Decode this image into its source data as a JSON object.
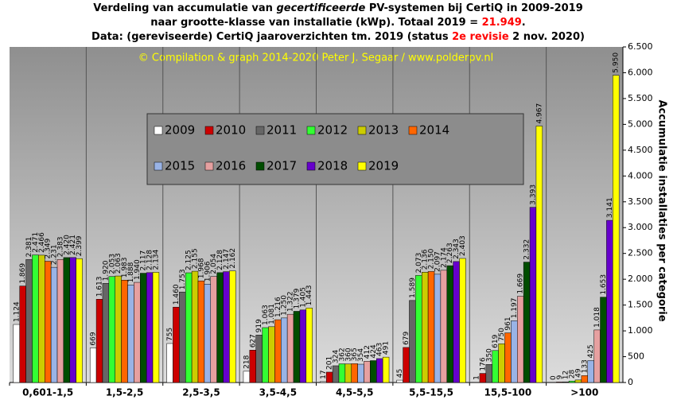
{
  "chart_data": {
    "type": "bar",
    "title_lines": [
      [
        {
          "text": "Verdeling van accumulatie van "
        },
        {
          "text": "gecertificeerde",
          "italic": true
        },
        {
          "text": " PV-systemen bij CertiQ in 2009-2019"
        }
      ],
      [
        {
          "text": "naar grootte-klasse van installatie (kWp). Totaal 2019 = "
        },
        {
          "text": "21.949",
          "color": "#ff0000"
        },
        {
          "text": "."
        }
      ],
      [
        {
          "text": "Data: (gereviseerde) CertiQ jaaroverzichten tm. 2019 (status "
        },
        {
          "text": "2e revisie",
          "color": "#ff0000"
        },
        {
          "text": " 2 nov. 2020)"
        }
      ]
    ],
    "annotation": "© Compilation  & graph 2014-2020 Peter J. Segaar / www.polderpv.nl",
    "y_label": "Accumulatie installaties per categorie",
    "categories": [
      "0,601-1,5",
      "1,5-2,5",
      "2,5-3,5",
      "3,5-4,5",
      "4,5-5,5",
      "5,5-15,5",
      "15,5-100",
      ">100"
    ],
    "ylim": [
      0,
      6500
    ],
    "yticks": [
      0,
      500,
      {
        "value": 1000,
        "label": "1.000"
      },
      {
        "value": 1500,
        "label": "1.500"
      },
      {
        "value": 2000,
        "label": "2.000"
      },
      {
        "value": 2500,
        "label": "2.500"
      },
      {
        "value": 3000,
        "label": "3.000"
      },
      {
        "value": 3500,
        "label": "3.500"
      },
      {
        "value": 4000,
        "label": "4.000"
      },
      {
        "value": 4500,
        "label": "4.500"
      },
      {
        "value": 5000,
        "label": "5.000"
      },
      {
        "value": 5500,
        "label": "5.500"
      },
      {
        "value": 6000,
        "label": "6.000"
      },
      {
        "value": 6500,
        "label": "6.500"
      }
    ],
    "series": [
      {
        "name": "2009",
        "color": "#ffffff",
        "values": [
          1124,
          669,
          755,
          218,
          17,
          45,
          1,
          0
        ],
        "value_labels": [
          "1.124",
          "669",
          "755",
          "218",
          "17",
          "45",
          "1",
          "0"
        ]
      },
      {
        "name": "2010",
        "color": "#cc0000",
        "values": [
          1869,
          1613,
          1460,
          627,
          201,
          679,
          176,
          9
        ],
        "value_labels": [
          "1.869",
          "1.613",
          "1.460",
          "627",
          "201",
          "679",
          "176",
          "9"
        ]
      },
      {
        "name": "2011",
        "color": "#666666",
        "values": [
          2381,
          1920,
          1753,
          919,
          324,
          1589,
          350,
          12
        ],
        "value_labels": [
          "2.381",
          "1.920",
          "1.753",
          "919",
          "324",
          "1.589",
          "350",
          "12"
        ]
      },
      {
        "name": "2012",
        "color": "#33ff33",
        "values": [
          2471,
          2053,
          2125,
          1063,
          362,
          2073,
          619,
          28
        ],
        "value_labels": [
          "2.471",
          "2.053",
          "2.125",
          "1.063",
          "362",
          "2.073",
          "619",
          "28"
        ]
      },
      {
        "name": "2013",
        "color": "#cccc00",
        "values": [
          2466,
          2063,
          2155,
          1081,
          360,
          2136,
          750,
          49
        ],
        "value_labels": [
          "2.466",
          "2.063",
          "2.155",
          "1.081",
          "360",
          "2.136",
          "750",
          "49"
        ]
      },
      {
        "name": "2014",
        "color": "#ff6600",
        "values": [
          2349,
          1983,
          1968,
          1216,
          365,
          2150,
          961,
          133
        ],
        "value_labels": [
          "2.349",
          "1.983",
          "1.968",
          "1.216",
          "365",
          "2.150",
          "961",
          "133"
        ]
      },
      {
        "name": "2015",
        "color": "#99b3e6",
        "values": [
          2231,
          1888,
          1906,
          1250,
          354,
          2097,
          1197,
          425
        ],
        "value_labels": [
          "2.231",
          "1.888",
          "1.906",
          "1.250",
          "354",
          "2.097",
          "1.197",
          "425"
        ]
      },
      {
        "name": "2016",
        "color": "#e6a0a0",
        "values": [
          2383,
          1940,
          2054,
          1322,
          412,
          2174,
          1669,
          1018
        ],
        "value_labels": [
          "2.383",
          "1.940",
          "2.054",
          "1.322",
          "412",
          "2.174",
          "1.669",
          "1.018"
        ]
      },
      {
        "name": "2017",
        "color": "#004d00",
        "values": [
          2420,
          2117,
          2128,
          1379,
          424,
          2263,
          2332,
          1653
        ],
        "value_labels": [
          "2.420",
          "2.117",
          "2.128",
          "1.379",
          "424",
          "2.263",
          "2.332",
          "1.653"
        ]
      },
      {
        "name": "2018",
        "color": "#6600cc",
        "values": [
          2421,
          2128,
          2147,
          1405,
          463,
          2343,
          3393,
          3141
        ],
        "value_labels": [
          "2.421",
          "2.128",
          "2.147",
          "1.405",
          "463",
          "2.343",
          "3.393",
          "3.141"
        ]
      },
      {
        "name": "2019",
        "color": "#ffff00",
        "values": [
          2399,
          2134,
          2162,
          1443,
          491,
          2403,
          4967,
          5950
        ],
        "value_labels": [
          "2.399",
          "2.134",
          "2.162",
          "1.443",
          "491",
          "2.403",
          "4.967",
          "5.950"
        ]
      }
    ],
    "legend_columns": 6
  }
}
